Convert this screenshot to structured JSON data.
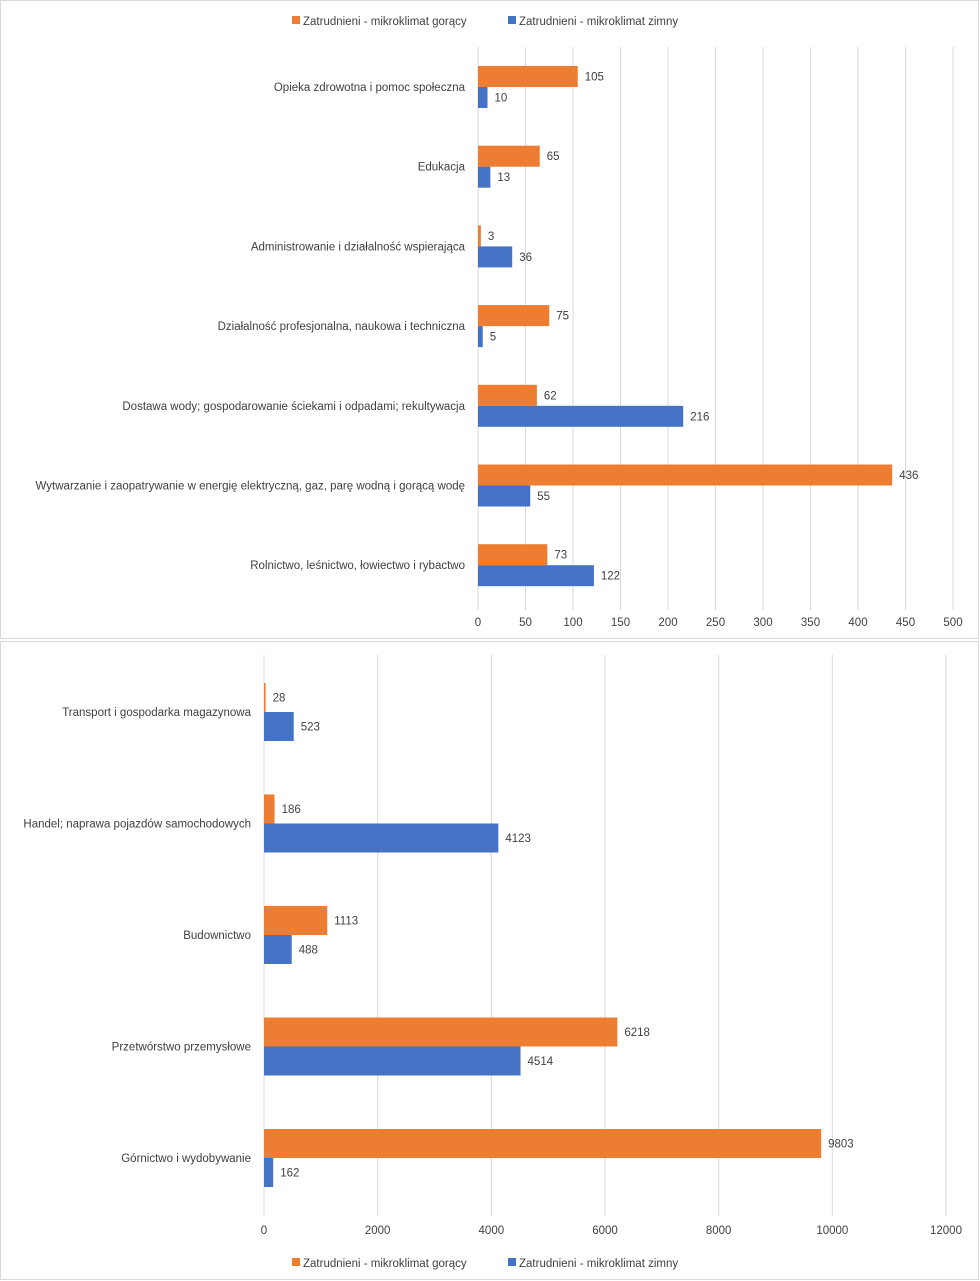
{
  "chart_data": [
    {
      "type": "bar",
      "orientation": "horizontal",
      "legend_position": "top",
      "grid": true,
      "xlim": [
        0,
        500
      ],
      "xticks": [
        "0",
        "50",
        "100",
        "150",
        "200",
        "250",
        "300",
        "350",
        "400",
        "450",
        "500"
      ],
      "tick_values": [
        0,
        50,
        100,
        150,
        200,
        250,
        300,
        350,
        400,
        450,
        500
      ],
      "categories": [
        "Opieka zdrowotna i pomoc społeczna",
        "Edukacja",
        "Administrowanie i działalność wspierająca",
        "Działalność profesjonalna, naukowa i techniczna",
        "Dostawa wody; gospodarowanie ściekami i odpadami; rekultywacja",
        "Wytwarzanie i zaopatrywanie w energię elektryczną, gaz, parę wodną i gorącą wodę",
        "Rolnictwo, leśnictwo, łowiectwo i rybactwo"
      ],
      "series": [
        {
          "name": "Zatrudnieni - mikroklimat gorący",
          "color": "#ED7D31",
          "values": [
            105,
            65,
            3,
            75,
            62,
            436,
            73
          ]
        },
        {
          "name": "Zatrudnieni - mikroklimat zimny",
          "color": "#4472C4",
          "values": [
            10,
            13,
            36,
            5,
            216,
            55,
            122
          ]
        }
      ]
    },
    {
      "type": "bar",
      "orientation": "horizontal",
      "legend_position": "bottom",
      "grid": true,
      "xlim": [
        0,
        12000
      ],
      "xticks": [
        "0",
        "2000",
        "4000",
        "6000",
        "8000",
        "10000",
        "12000"
      ],
      "tick_values": [
        0,
        2000,
        4000,
        6000,
        8000,
        10000,
        12000
      ],
      "categories": [
        "Transport i gospodarka magazynowa",
        "Handel; naprawa pojazdów samochodowych",
        "Budownictwo",
        "Przetwórstwo przemysłowe",
        "Górnictwo i wydobywanie"
      ],
      "series": [
        {
          "name": "Zatrudnieni - mikroklimat gorący",
          "color": "#ED7D31",
          "values": [
            28,
            186,
            1113,
            6218,
            9803
          ]
        },
        {
          "name": "Zatrudnieni - mikroklimat zimny",
          "color": "#4472C4",
          "values": [
            523,
            4123,
            488,
            4514,
            162
          ]
        }
      ]
    }
  ]
}
